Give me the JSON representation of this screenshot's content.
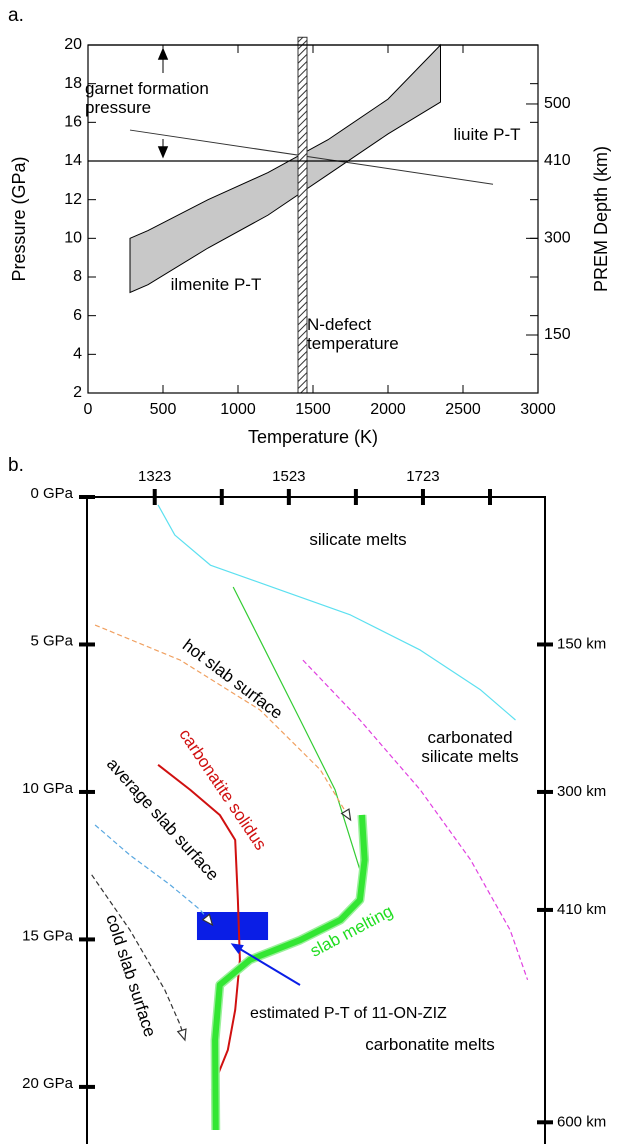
{
  "chart_data": [
    {
      "type": "area",
      "label": "a.",
      "x_label": "Temperature (K)",
      "y_label": "Pressure (GPa)",
      "y2_label": "PREM Depth (km)",
      "xlim": [
        0,
        3000
      ],
      "xticks": [
        0,
        500,
        1000,
        1500,
        2000,
        2500,
        3000
      ],
      "ylim": [
        2,
        20
      ],
      "yticks": [
        2,
        4,
        6,
        8,
        10,
        12,
        14,
        16,
        18,
        20
      ],
      "y2ticks": [
        150,
        300,
        410,
        500
      ],
      "series": [
        {
          "name": "ilmenite P-T",
          "color": "#c8c8c8",
          "x": [
            280,
            400,
            800,
            1200,
            1600,
            2000,
            2350
          ],
          "high": [
            10.0,
            10.4,
            12.0,
            13.4,
            15.1,
            17.2,
            20.0
          ],
          "low": [
            7.2,
            7.6,
            9.5,
            11.2,
            13.3,
            15.4,
            17.05
          ]
        },
        {
          "name": "liuite P-T",
          "color": "#333333",
          "x": [
            280,
            2700
          ],
          "values": [
            15.6,
            12.8
          ]
        },
        {
          "name": "N-defect temperature",
          "color": "#333333",
          "xrange": [
            1400,
            1460
          ],
          "yrange": [
            2,
            20.4
          ]
        },
        {
          "name": "garnet formation pressure",
          "color": "#000000",
          "values": [
            14,
            20
          ]
        }
      ]
    },
    {
      "type": "line",
      "label": "b.",
      "xlim": [
        1222,
        1905
      ],
      "xticks": [
        1323,
        1523,
        1723
      ],
      "xminorticks": [
        1423,
        1623,
        1823
      ],
      "ylim": [
        0,
        21.8
      ],
      "yticks": [
        {
          "value": 0,
          "label": "0 GPa"
        },
        {
          "value": 5,
          "label": "5 GPa"
        },
        {
          "value": 10,
          "label": "10 GPa"
        },
        {
          "value": 15,
          "label": "15 GPa"
        },
        {
          "value": 20,
          "label": "20 GPa"
        }
      ],
      "y2ticks": [
        {
          "value": 150,
          "label": "150 km"
        },
        {
          "value": 300,
          "label": "300 km"
        },
        {
          "value": 410,
          "label": "410 km"
        },
        {
          "value": 600,
          "label": "600 km"
        }
      ],
      "series": [
        {
          "color": "#5ce0f0",
          "x": [
            1328,
            1353,
            1406,
            1510,
            1615,
            1719,
            1809,
            1861
          ],
          "values": [
            0.27,
            1.29,
            2.31,
            3.15,
            4.0,
            5.19,
            6.54,
            7.56
          ]
        },
        {
          "color": "#33cc33",
          "x": [
            1440,
            1480,
            1540,
            1592,
            1629
          ],
          "values": [
            3.05,
            4.85,
            7.56,
            9.93,
            12.64
          ]
        },
        {
          "color": "#e040e0",
          "dashed": true,
          "x": [
            1544,
            1629,
            1719,
            1794,
            1853,
            1879
          ],
          "values": [
            5.53,
            7.56,
            9.93,
            12.3,
            14.68,
            16.37
          ]
        },
        {
          "name": "hot slab surface",
          "color": "#f0a060",
          "dashed": true,
          "arrow": true,
          "x": [
            1234,
            1361,
            1480,
            1570,
            1615
          ],
          "values": [
            4.34,
            5.53,
            7.22,
            9.25,
            10.95
          ]
        },
        {
          "name": "average slab surface",
          "color": "#5aa8e0",
          "dashed": true,
          "arrow": true,
          "x": [
            1234,
            1286,
            1346,
            1391,
            1409
          ],
          "values": [
            11.12,
            12.14,
            13.15,
            14.0,
            14.51
          ]
        },
        {
          "name": "cold slab surface",
          "color": "#333333",
          "dashed": true,
          "arrow": true,
          "x": [
            1229,
            1286,
            1338,
            1361,
            1368
          ],
          "values": [
            12.81,
            14.68,
            16.71,
            17.9,
            18.41
          ]
        },
        {
          "name": "carbonatite solidus",
          "color": "#d01010",
          "x": [
            1328,
            1376,
            1420,
            1443,
            1447,
            1450,
            1443,
            1432,
            1408
          ],
          "values": [
            9.08,
            9.93,
            10.78,
            11.63,
            13.66,
            15.69,
            17.39,
            18.75,
            20.1
          ]
        },
        {
          "name": "slab melting",
          "color": "#33e633",
          "thick": true,
          "x": [
            1632,
            1636,
            1629,
            1600,
            1540,
            1465,
            1420,
            1413,
            1414
          ],
          "values": [
            10.78,
            12.3,
            13.66,
            14.34,
            15.02,
            15.69,
            16.54,
            18.41,
            21.46
          ]
        }
      ],
      "sample": {
        "name": "estimated P-T of 11-ON-ZIZ",
        "color": "#0a1ee6",
        "xrange": [
          1386,
          1492
        ],
        "yrange": [
          14.07,
          15.02
        ]
      },
      "annotations": [
        "silicate melts",
        "carbonated silicate melts",
        "carbonatite melts"
      ]
    }
  ]
}
